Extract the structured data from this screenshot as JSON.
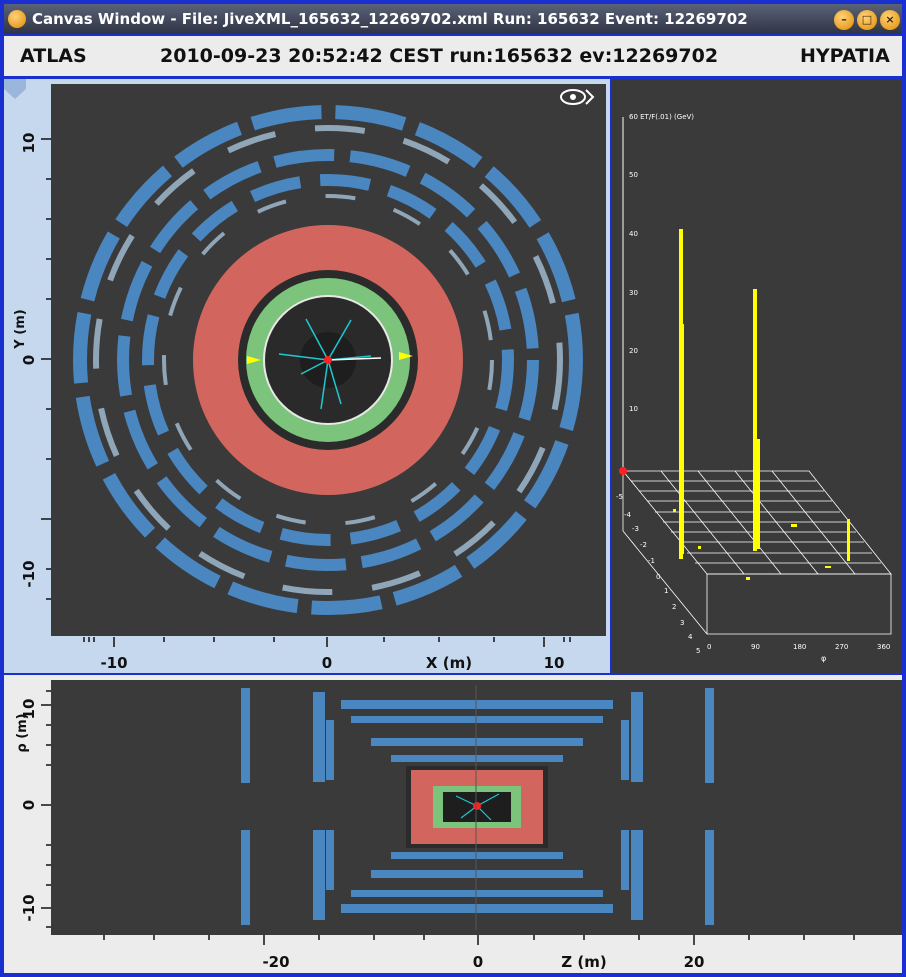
{
  "window": {
    "title": "Canvas Window -  File: JiveXML_165632_12269702.xml  Run: 165632  Event: 12269702"
  },
  "header": {
    "left": "ATLAS",
    "center": "2010-09-23 20:52:42 CEST run:165632 ev:12269702",
    "right": "HYPATIA"
  },
  "xy_view": {
    "y_axis_label": "Y (m)",
    "x_axis_label": "X (m)",
    "y_ticks": [
      "10",
      "0",
      "-10"
    ],
    "x_ticks": [
      "-10",
      "0",
      "10"
    ],
    "icon": "eye-fish-icon"
  },
  "lego_view": {
    "z_label": "60 ET/F(.01) (GeV)",
    "z_ticks": [
      "50",
      "40",
      "30",
      "20",
      "10"
    ],
    "eta_ticks": [
      "-5",
      "-4",
      "-3",
      "-2",
      "-1",
      "0",
      "1",
      "2",
      "3",
      "4",
      "5"
    ],
    "phi_ticks": [
      "0",
      "90",
      "180",
      "270",
      "360"
    ],
    "phi_label": "φ"
  },
  "rz_view": {
    "y_axis_label": "ρ (m)",
    "x_axis_label": "Z (m)",
    "y_ticks": [
      "10",
      "0",
      "-10"
    ],
    "x_ticks": [
      "-20",
      "0",
      "20"
    ]
  },
  "colors": {
    "muon": "#4a86c0",
    "muon_light": "#8fa5b8",
    "hcal": "#d2665f",
    "ecal": "#7cc47c",
    "background": "#3a3a3a",
    "track": "#1ec8d0",
    "energy": "#ffff00"
  }
}
